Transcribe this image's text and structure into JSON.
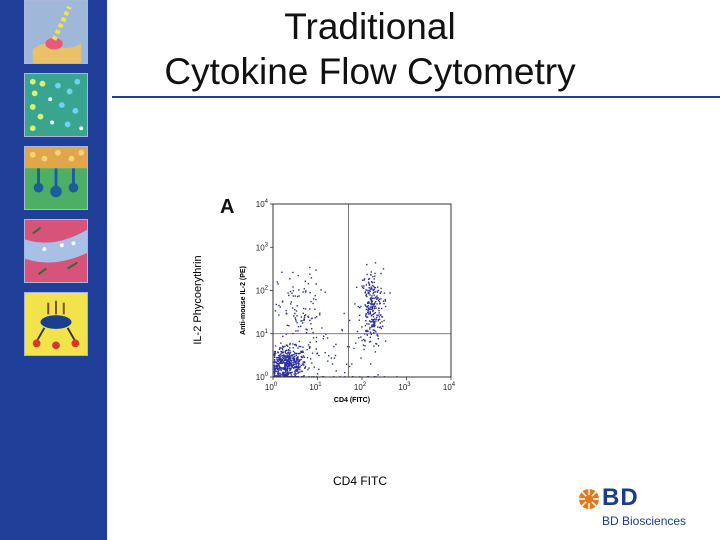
{
  "slide": {
    "title_line1": "Traditional",
    "title_line2": "Cytokine Flow Cytometry",
    "outer_ylabel": "IL-2 Phycoerythrin",
    "outer_xlabel": "CD4  FITC",
    "panel_letter": "A"
  },
  "logo": {
    "mark": "BD",
    "text": "BD Biosciences",
    "icon": "bd-sunburst-icon"
  },
  "sidebar": {
    "tiles": [
      {
        "name": "cell-receptor-thumbnail",
        "icon": "cell-receptor-icon"
      },
      {
        "name": "molecule-grid-thumbnail",
        "icon": "molecule-grid-icon"
      },
      {
        "name": "cell-surface-thumbnail",
        "icon": "cell-surface-icon"
      },
      {
        "name": "tissue-thumbnail",
        "icon": "tissue-icon"
      },
      {
        "name": "assay-thumbnail",
        "icon": "assay-icon"
      }
    ]
  },
  "colors": {
    "sidebar": "#1f3f99",
    "dots": "#2b2f9e",
    "rule": "#1f3f99",
    "gate": "#555555"
  },
  "chart_data": {
    "type": "scatter",
    "xlabel": "CD4 (FITC)",
    "ylabel": "Anti-mouse IL-2 (PE)",
    "x_scale": "log",
    "y_scale": "log",
    "xlim": [
      1,
      10000
    ],
    "ylim": [
      1,
      10000
    ],
    "x_ticks": [
      {
        "base": "10",
        "exp": "0"
      },
      {
        "base": "10",
        "exp": "1"
      },
      {
        "base": "10",
        "exp": "2"
      },
      {
        "base": "10",
        "exp": "3"
      },
      {
        "base": "10",
        "exp": "4"
      }
    ],
    "y_ticks": [
      {
        "base": "10",
        "exp": "0"
      },
      {
        "base": "10",
        "exp": "1"
      },
      {
        "base": "10",
        "exp": "2"
      },
      {
        "base": "10",
        "exp": "3"
      },
      {
        "base": "10",
        "exp": "4"
      }
    ],
    "quadrant_gate": {
      "x": 50,
      "y": 10
    },
    "populations": [
      {
        "center": [
          2,
          2
        ],
        "spread": [
          0.22,
          0.2
        ],
        "points": 520
      },
      {
        "center": [
          160,
          40
        ],
        "spread": [
          0.13,
          0.45
        ],
        "points": 260
      },
      {
        "center": [
          4,
          30
        ],
        "spread": [
          0.25,
          0.5
        ],
        "points": 110
      },
      {
        "center": [
          30,
          3
        ],
        "spread": [
          0.6,
          0.6
        ],
        "points": 70
      }
    ],
    "grid": false
  }
}
